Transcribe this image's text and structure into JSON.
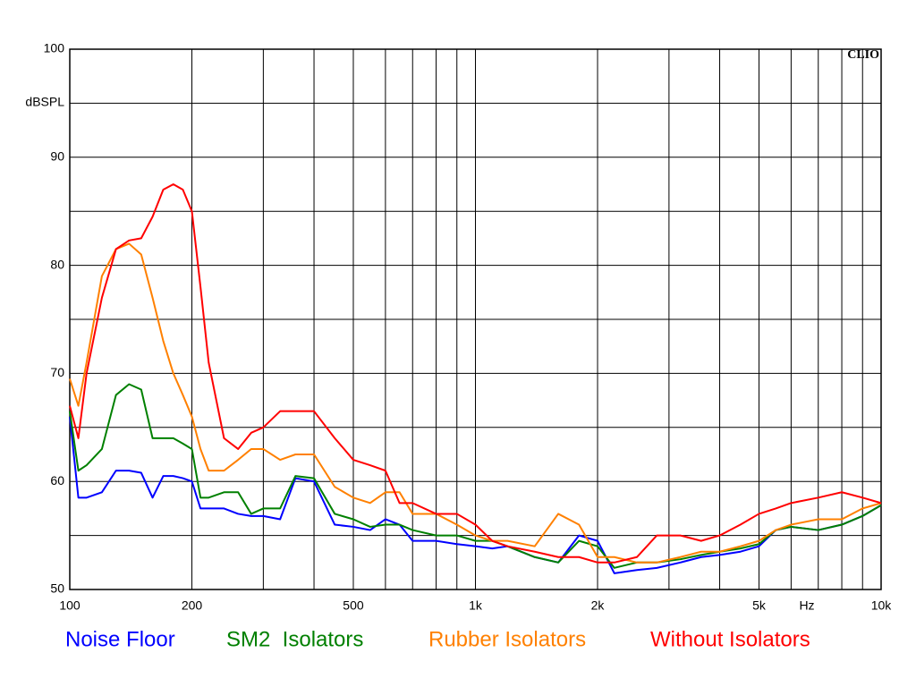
{
  "chart_data": {
    "type": "line",
    "ylabel": "dBSPL",
    "xlabel": "Hz",
    "watermark": "CLIO",
    "xscale": "log",
    "xlim": [
      100,
      10000
    ],
    "ylim": [
      50,
      100
    ],
    "xticks": [
      100,
      200,
      500,
      {
        "value": 1000,
        "label": "1k"
      },
      {
        "value": 2000,
        "label": "2k"
      },
      {
        "value": 5000,
        "label": "5k"
      },
      {
        "value": 10000,
        "label": "10k"
      }
    ],
    "yticks": [
      50,
      60,
      70,
      80,
      90,
      100
    ],
    "xgrid": [
      100,
      200,
      300,
      400,
      500,
      600,
      700,
      800,
      900,
      1000,
      2000,
      3000,
      4000,
      5000,
      6000,
      7000,
      8000,
      9000,
      10000
    ],
    "ygrid": [
      50,
      55,
      60,
      65,
      70,
      75,
      80,
      85,
      90,
      95,
      100
    ],
    "x": [
      100,
      105,
      110,
      120,
      130,
      140,
      150,
      160,
      170,
      180,
      190,
      200,
      210,
      220,
      240,
      260,
      280,
      300,
      330,
      360,
      400,
      450,
      500,
      550,
      600,
      650,
      700,
      800,
      900,
      1000,
      1100,
      1200,
      1400,
      1600,
      1800,
      2000,
      2200,
      2500,
      2800,
      3200,
      3600,
      4000,
      4500,
      5000,
      5500,
      6000,
      7000,
      8000,
      9000,
      10000
    ],
    "series": [
      {
        "name": "Noise Floor",
        "color": "#0000ff",
        "values": [
          66,
          58.5,
          58.5,
          59,
          61,
          61,
          60.8,
          58.5,
          60.5,
          60.5,
          60.3,
          60,
          57.5,
          57.5,
          57.5,
          57,
          56.8,
          56.8,
          56.5,
          60.3,
          60,
          56,
          55.8,
          55.5,
          56.5,
          56,
          54.5,
          54.5,
          54.2,
          54,
          53.8,
          54,
          53,
          52.5,
          55,
          54.5,
          51.5,
          51.8,
          52,
          52.5,
          53,
          53.2,
          53.5,
          54,
          55.5,
          55.8,
          55.5,
          56,
          56.8,
          57.8
        ]
      },
      {
        "name": "SM2  Isolators",
        "color": "#008000",
        "values": [
          66.5,
          61,
          61.5,
          63,
          68,
          69,
          68.5,
          64,
          64,
          64,
          63.5,
          63,
          58.5,
          58.5,
          59,
          59,
          57,
          57.5,
          57.5,
          60.5,
          60.3,
          57,
          56.5,
          55.8,
          56,
          56,
          55.5,
          55,
          55,
          54.5,
          54.5,
          54,
          53,
          52.5,
          54.5,
          54,
          52,
          52.5,
          52.5,
          52.8,
          53.2,
          53.5,
          53.8,
          54.2,
          55.5,
          55.8,
          55.5,
          56,
          56.8,
          57.8
        ]
      },
      {
        "name": "Rubber Isolators",
        "color": "#ff8000",
        "values": [
          69.5,
          67,
          71,
          79,
          81.5,
          82,
          81,
          77,
          73,
          70,
          68,
          66,
          63,
          61,
          61,
          62,
          63,
          63,
          62,
          62.5,
          62.5,
          59.5,
          58.5,
          58,
          59,
          59,
          57,
          57,
          56,
          55,
          54.5,
          54.5,
          54,
          57,
          56,
          53,
          53,
          52.5,
          52.5,
          53,
          53.5,
          53.5,
          54,
          54.5,
          55.5,
          56,
          56.5,
          56.5,
          57.5,
          58
        ]
      },
      {
        "name": "Without Isolators",
        "color": "#ff0000",
        "values": [
          67,
          64,
          70,
          77,
          81.5,
          82.3,
          82.5,
          84.5,
          87,
          87.5,
          87,
          85,
          78,
          71,
          64,
          63,
          64.5,
          65,
          66.5,
          66.5,
          66.5,
          64,
          62,
          61.5,
          61,
          58,
          58,
          57,
          57,
          56,
          54.5,
          54,
          53.5,
          53,
          53,
          52.5,
          52.5,
          53,
          55,
          55,
          54.5,
          55,
          56,
          57,
          57.5,
          58,
          58.5,
          59,
          58.5,
          58
        ]
      }
    ]
  }
}
